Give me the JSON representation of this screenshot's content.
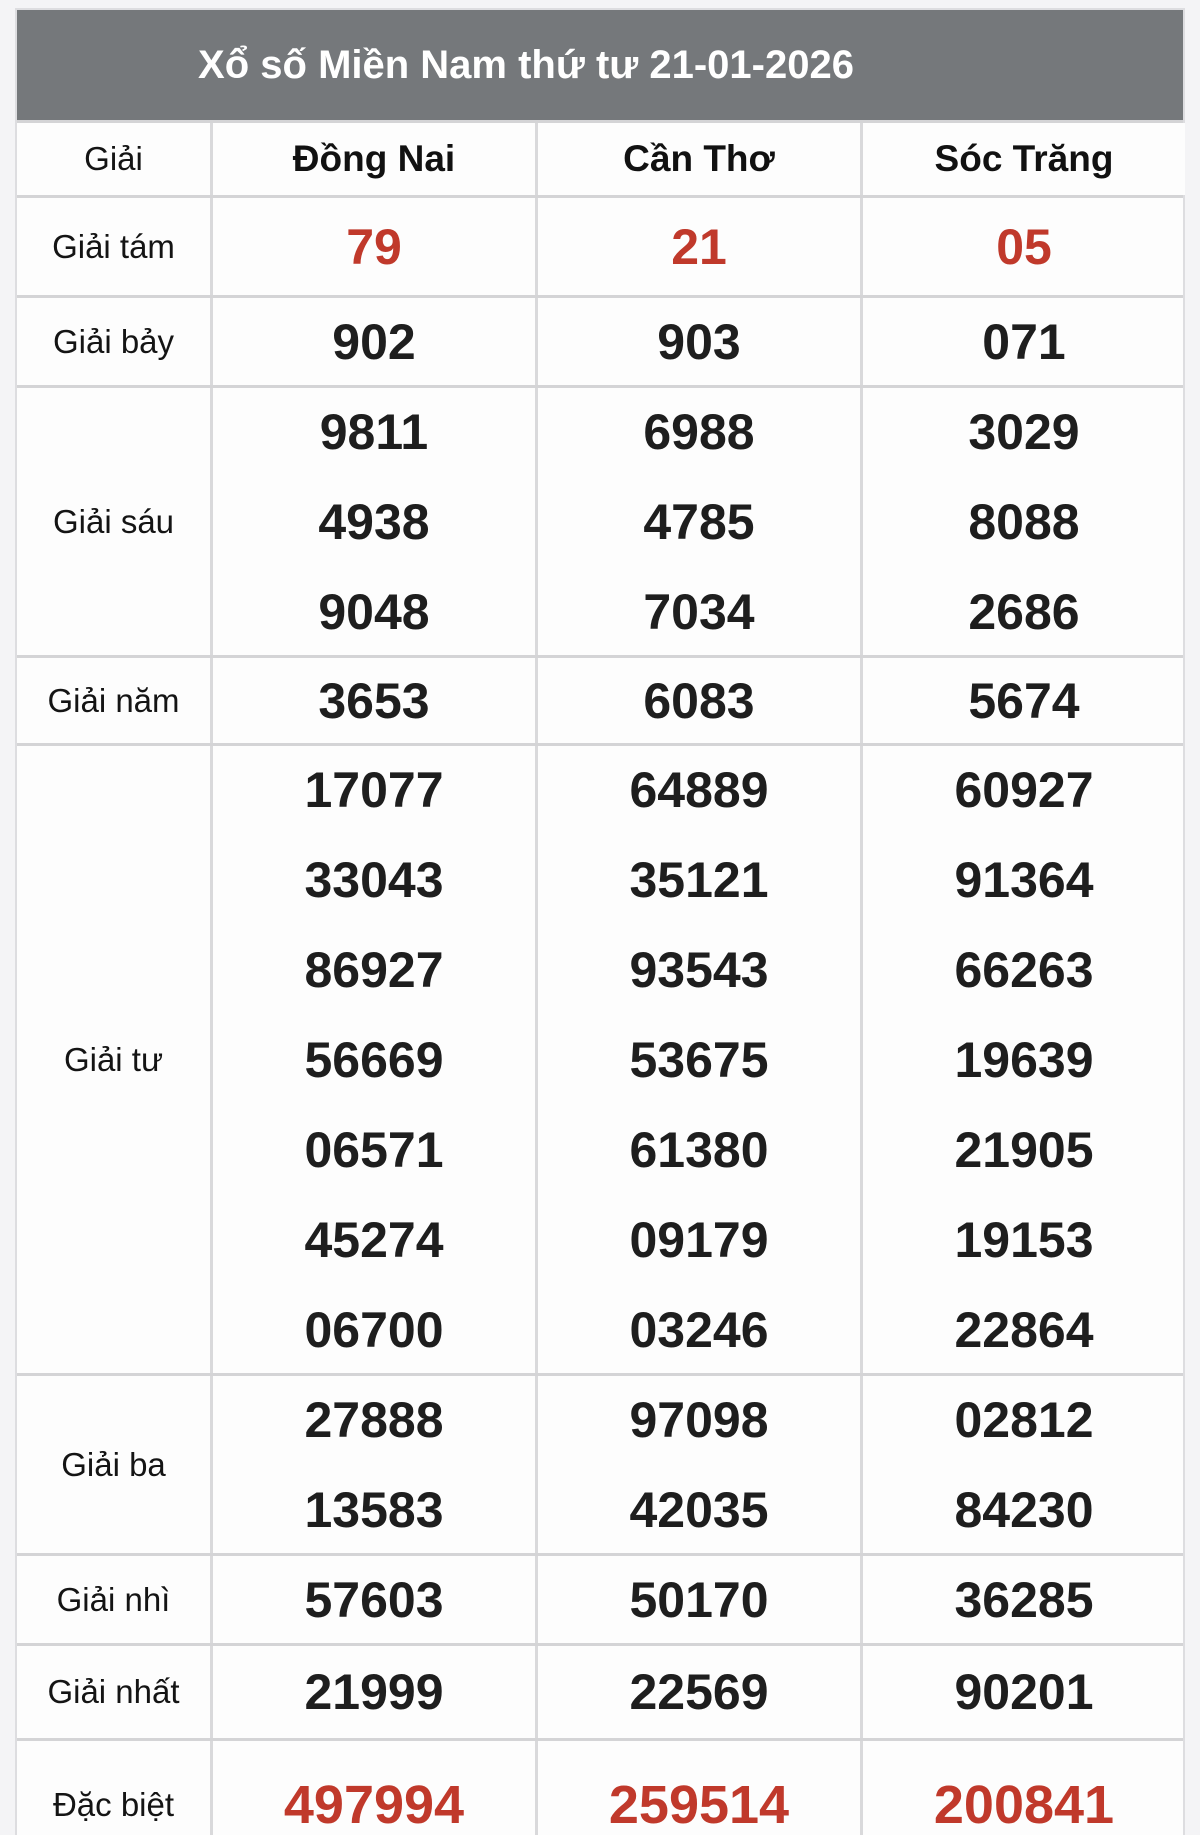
{
  "title": "Xổ số Miền Nam thứ tư 21-01-2026",
  "colors": {
    "title_bar_bg": "#75787b",
    "title_text": "#ffffff",
    "highlight_red": "#c0392b",
    "number_text": "#1e1e1e",
    "border": "#d4d4d6",
    "page_bg": "#f4f4f6",
    "cell_bg": "#fdfdfd"
  },
  "table": {
    "columns": [
      "Giải",
      "Đồng Nai",
      "Cần Thơ",
      "Sóc Trăng"
    ],
    "rows": [
      {
        "label": "Giải tám",
        "highlight": true,
        "cells": [
          [
            "79"
          ],
          [
            "21"
          ],
          [
            "05"
          ]
        ]
      },
      {
        "label": "Giải bảy",
        "highlight": false,
        "cells": [
          [
            "902"
          ],
          [
            "903"
          ],
          [
            "071"
          ]
        ]
      },
      {
        "label": "Giải sáu",
        "highlight": false,
        "cells": [
          [
            "9811",
            "4938",
            "9048"
          ],
          [
            "6988",
            "4785",
            "7034"
          ],
          [
            "3029",
            "8088",
            "2686"
          ]
        ]
      },
      {
        "label": "Giải năm",
        "highlight": false,
        "cells": [
          [
            "3653"
          ],
          [
            "6083"
          ],
          [
            "5674"
          ]
        ]
      },
      {
        "label": "Giải tư",
        "highlight": false,
        "cells": [
          [
            "17077",
            "33043",
            "86927",
            "56669",
            "06571",
            "45274",
            "06700"
          ],
          [
            "64889",
            "35121",
            "93543",
            "53675",
            "61380",
            "09179",
            "03246"
          ],
          [
            "60927",
            "91364",
            "66263",
            "19639",
            "21905",
            "19153",
            "22864"
          ]
        ]
      },
      {
        "label": "Giải ba",
        "highlight": false,
        "cells": [
          [
            "27888",
            "13583"
          ],
          [
            "97098",
            "42035"
          ],
          [
            "02812",
            "84230"
          ]
        ]
      },
      {
        "label": "Giải nhì",
        "highlight": false,
        "cells": [
          [
            "57603"
          ],
          [
            "50170"
          ],
          [
            "36285"
          ]
        ]
      },
      {
        "label": "Giải nhất",
        "highlight": false,
        "cells": [
          [
            "21999"
          ],
          [
            "22569"
          ],
          [
            "90201"
          ]
        ]
      },
      {
        "label": "Đặc biệt",
        "highlight": true,
        "cells": [
          [
            "497994"
          ],
          [
            "259514"
          ],
          [
            "200841"
          ]
        ]
      }
    ]
  }
}
